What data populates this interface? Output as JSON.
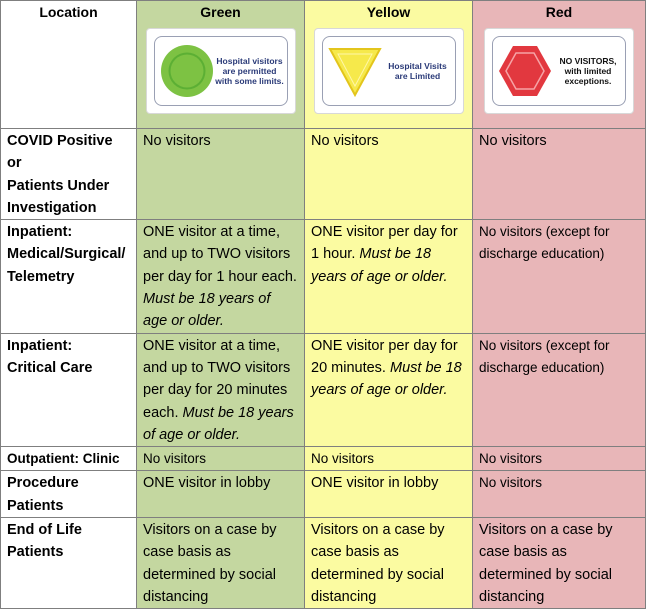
{
  "headers": {
    "location": "Location",
    "green": "Green",
    "yellow": "Yellow",
    "red": "Red"
  },
  "signs": {
    "green": {
      "text": "Hospital visitors are permitted with some limits.",
      "icon": "green-circle-icon",
      "color": "#7dc243"
    },
    "yellow": {
      "text": "Hospital Visits are Limited",
      "icon": "yellow-triangle-icon",
      "color": "#f6e94b"
    },
    "red": {
      "text": "NO VISITORS, with limited exceptions.",
      "icon": "red-hexagon-icon",
      "color": "#e2383f"
    }
  },
  "rows": [
    {
      "location": [
        "COVID Positive or",
        "Patients Under",
        "Investigation"
      ],
      "green": {
        "text": "No visitors"
      },
      "yellow": {
        "text": "No visitors"
      },
      "red": {
        "text": "No visitors"
      }
    },
    {
      "location": [
        "Inpatient:",
        "Medical/Surgical/",
        "Telemetry"
      ],
      "green": {
        "text": "ONE visitor at a time, and up to TWO visitors per day for 1 hour each. ",
        "em": "Must be 18 years of age or older."
      },
      "yellow": {
        "text": "ONE visitor per day for 1 hour. ",
        "em": "Must be 18 years of age or older."
      },
      "red": {
        "text": "No visitors (except for discharge education)"
      }
    },
    {
      "location": [
        "Inpatient:",
        "Critical Care"
      ],
      "green": {
        "text": "ONE visitor at a time, and up to TWO visitors per day for 20 minutes each. ",
        "em": "Must be 18 years of age or older."
      },
      "yellow": {
        "text": "ONE visitor per day for 20 minutes. ",
        "em": "Must be 18 years of age or older."
      },
      "red": {
        "text": "No visitors (except for discharge education)"
      }
    },
    {
      "location": [
        "Outpatient: Clinic"
      ],
      "green": {
        "text": "No visitors"
      },
      "yellow": {
        "text": "No visitors"
      },
      "red": {
        "text": "No visitors"
      }
    },
    {
      "location": [
        "Procedure",
        "Patients"
      ],
      "green": {
        "text": "ONE visitor in lobby"
      },
      "yellow": {
        "text": "ONE visitor in lobby"
      },
      "red": {
        "text": "No visitors"
      }
    },
    {
      "location": [
        "End of Life",
        "Patients"
      ],
      "green": {
        "text": "Visitors on a case by case basis as determined by social distancing"
      },
      "yellow": {
        "text": "Visitors on a case by case basis as determined by social distancing"
      },
      "red": {
        "text": "Visitors on a case by case basis as determined by social distancing"
      }
    }
  ]
}
